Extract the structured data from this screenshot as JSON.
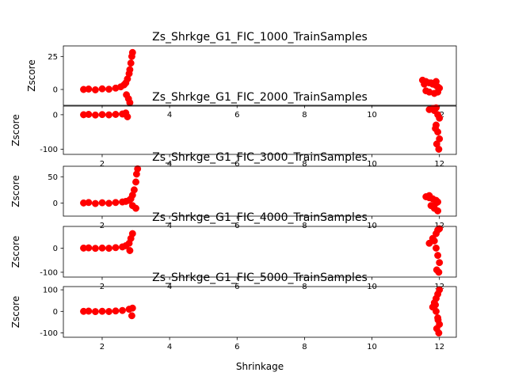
{
  "figure": {
    "xlabel": "Shrinkage"
  },
  "chart_data": [
    {
      "type": "scatter",
      "title": "Zs_Shrkge_G1_FIC_1000_TrainSamples",
      "xlabel": "",
      "ylabel": "Zscore",
      "xlim": [
        0.85,
        12.5
      ],
      "ylim": [
        -12,
        33
      ],
      "xticks": [
        2,
        4,
        6,
        8,
        10,
        12
      ],
      "yticks": [
        0,
        25
      ],
      "color": "#ff0000",
      "series": [
        {
          "x": [
            1.45,
            1.6,
            1.8,
            2.0,
            2.2,
            2.4,
            2.55,
            2.65,
            2.7,
            2.75,
            2.8,
            2.82,
            2.85,
            2.88,
            2.9,
            2.72,
            2.78,
            2.82,
            11.5,
            11.6,
            11.7,
            11.8,
            11.9,
            11.95,
            12.0,
            11.6,
            11.7,
            11.85,
            11.95,
            11.55,
            11.75,
            11.9
          ],
          "y": [
            0,
            0.3,
            -0.3,
            0.5,
            0.2,
            1.0,
            2.0,
            3.5,
            5.0,
            8.0,
            12.0,
            15.0,
            20.0,
            25.0,
            28.0,
            -4.0,
            -7.0,
            -10.0,
            7.0,
            6.0,
            5.0,
            4.0,
            3.0,
            2.0,
            1.0,
            -1.0,
            -2.0,
            -3.0,
            -2.0,
            4.0,
            5.0,
            6.0
          ]
        }
      ]
    },
    {
      "type": "scatter",
      "title": "Zs_Shrkge_G1_FIC_2000_TrainSamples",
      "xlabel": "",
      "ylabel": "Zscore",
      "xlim": [
        0.85,
        12.5
      ],
      "ylim": [
        -115,
        25
      ],
      "xticks": [
        2,
        4,
        6,
        8,
        10,
        12
      ],
      "yticks": [
        -100,
        0
      ],
      "color": "#ff0000",
      "series": [
        {
          "x": [
            1.45,
            1.6,
            1.8,
            2.0,
            2.2,
            2.4,
            2.6,
            2.7,
            2.75,
            11.7,
            11.8,
            11.85,
            11.9,
            11.95,
            12.0,
            11.9,
            11.95,
            12.0,
            11.92,
            11.98,
            11.88
          ],
          "y": [
            0,
            1.0,
            -1.0,
            0.5,
            -0.5,
            1.0,
            2.0,
            5.0,
            -6.0,
            15.0,
            18.0,
            12.0,
            20.0,
            0.0,
            -10.0,
            -30.0,
            -50.0,
            -70.0,
            -85.0,
            -100.0,
            -40.0
          ]
        }
      ]
    },
    {
      "type": "scatter",
      "title": "Zs_Shrkge_G1_FIC_3000_TrainSamples",
      "xlabel": "",
      "ylabel": "Zscore",
      "xlim": [
        0.85,
        12.5
      ],
      "ylim": [
        -25,
        70
      ],
      "xticks": [
        2,
        4,
        6,
        8,
        10,
        12
      ],
      "yticks": [
        0,
        50
      ],
      "color": "#ff0000",
      "series": [
        {
          "x": [
            1.45,
            1.6,
            1.8,
            2.0,
            2.2,
            2.4,
            2.6,
            2.7,
            2.8,
            2.85,
            2.9,
            2.95,
            3.0,
            3.02,
            3.05,
            2.9,
            3.0,
            11.6,
            11.7,
            11.8,
            11.9,
            11.95,
            11.75,
            11.85,
            11.95,
            11.7,
            11.9
          ],
          "y": [
            0,
            1.0,
            -1.0,
            0.5,
            -0.5,
            1.0,
            2.0,
            3.0,
            5.0,
            8.0,
            15.0,
            25.0,
            40.0,
            55.0,
            65.0,
            -5.0,
            -10.0,
            12.0,
            10.0,
            8.0,
            5.0,
            2.0,
            -5.0,
            -10.0,
            -15.0,
            14.0,
            0.0
          ]
        }
      ]
    },
    {
      "type": "scatter",
      "title": "Zs_Shrkge_G1_FIC_4000_TrainSamples",
      "xlabel": "",
      "ylabel": "Zscore",
      "xlim": [
        0.85,
        12.5
      ],
      "ylim": [
        -120,
        90
      ],
      "xticks": [
        2,
        4,
        6,
        8,
        10,
        12
      ],
      "yticks": [
        -100,
        0
      ],
      "color": "#ff0000",
      "series": [
        {
          "x": [
            1.45,
            1.6,
            1.8,
            2.0,
            2.2,
            2.4,
            2.6,
            2.7,
            2.8,
            2.85,
            2.9,
            2.82,
            11.7,
            11.8,
            11.9,
            11.95,
            12.0,
            11.9,
            11.95,
            12.0,
            11.92,
            11.98,
            11.85
          ],
          "y": [
            0,
            1.0,
            -1.0,
            0.5,
            -0.5,
            2.0,
            5.0,
            10.0,
            20.0,
            40.0,
            60.0,
            -10.0,
            20.0,
            40.0,
            60.0,
            75.0,
            80.0,
            0.0,
            -30.0,
            -60.0,
            -90.0,
            -100.0,
            30.0
          ]
        }
      ]
    },
    {
      "type": "scatter",
      "title": "Zs_Shrkge_G1_FIC_5000_TrainSamples",
      "xlabel": "Shrinkage",
      "ylabel": "Zscore",
      "xlim": [
        0.85,
        12.5
      ],
      "ylim": [
        -120,
        115
      ],
      "xticks": [
        2,
        4,
        6,
        8,
        10,
        12
      ],
      "yticks": [
        -100,
        0,
        100
      ],
      "color": "#ff0000",
      "series": [
        {
          "x": [
            1.45,
            1.6,
            1.8,
            2.0,
            2.2,
            2.4,
            2.6,
            2.8,
            2.9,
            2.88,
            11.8,
            11.85,
            11.9,
            11.95,
            12.0,
            11.9,
            11.95,
            12.0,
            11.92,
            11.98,
            11.88,
            11.96
          ],
          "y": [
            0,
            1.0,
            -1.0,
            0.5,
            -0.5,
            2.0,
            4.0,
            10.0,
            15.0,
            -20.0,
            20.0,
            40.0,
            60.0,
            80.0,
            100.0,
            0.0,
            -30.0,
            -60.0,
            -80.0,
            -100.0,
            30.0,
            -40.0
          ]
        }
      ]
    }
  ]
}
